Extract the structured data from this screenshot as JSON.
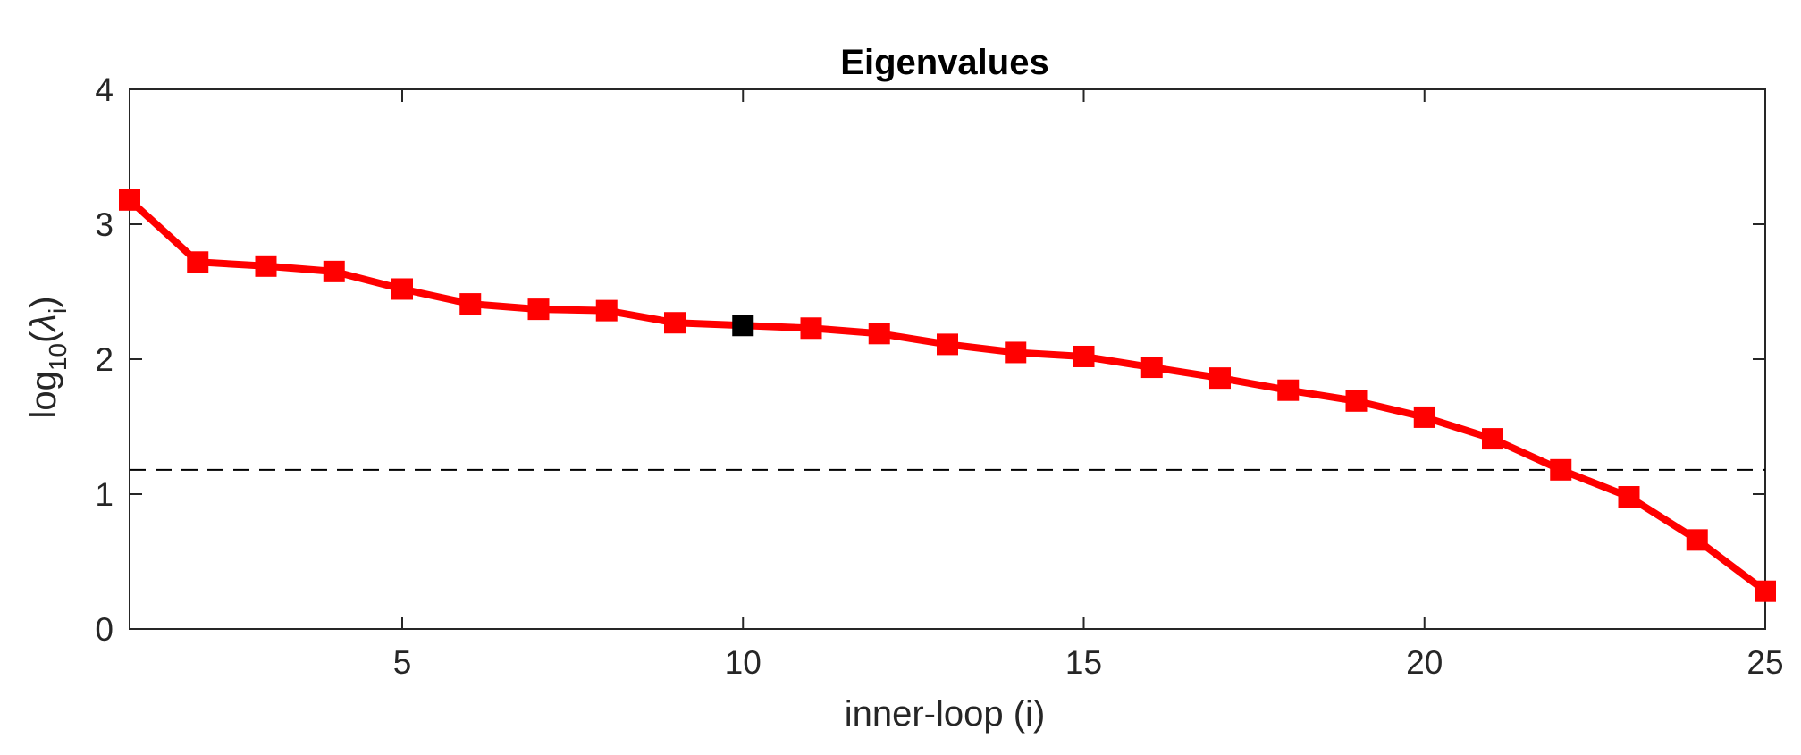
{
  "chart_data": {
    "type": "line",
    "title": "Eigenvalues",
    "xlabel": "inner-loop (i)",
    "ylabel": {
      "base": "log",
      "subscript": "10",
      "open": "(",
      "symbol": "λ",
      "symbol_subscript": "i",
      "close": ")"
    },
    "xlim": [
      1,
      25
    ],
    "ylim": [
      0,
      4
    ],
    "xticks": [
      5,
      10,
      15,
      20,
      25
    ],
    "yticks": [
      0,
      1,
      2,
      3,
      4
    ],
    "grid": false,
    "box": true,
    "series": [
      {
        "color": "#ff0000",
        "marker": "square",
        "x": [
          1,
          2,
          3,
          4,
          5,
          6,
          7,
          8,
          9,
          10,
          11,
          12,
          13,
          14,
          15,
          16,
          17,
          18,
          19,
          20,
          21,
          22,
          23,
          24,
          25
        ],
        "y": [
          3.18,
          2.72,
          2.69,
          2.65,
          2.52,
          2.41,
          2.37,
          2.36,
          2.27,
          2.25,
          2.23,
          2.19,
          2.11,
          2.05,
          2.02,
          1.94,
          1.86,
          1.77,
          1.69,
          1.57,
          1.41,
          1.18,
          0.98,
          0.66,
          0.28
        ]
      }
    ],
    "highlight": {
      "x": 10,
      "y": 2.25,
      "color": "#000000",
      "marker": "square"
    },
    "reference_line": {
      "y": 1.18,
      "style": "dashed",
      "color": "#000000"
    }
  }
}
